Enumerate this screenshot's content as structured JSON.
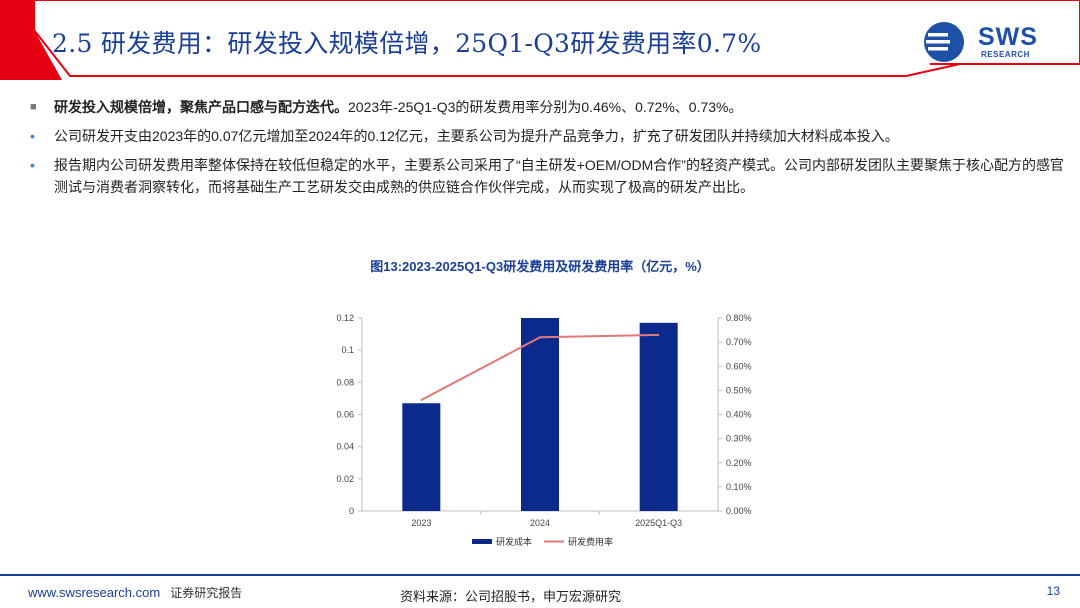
{
  "slide": {
    "title": "2.5 研发费用：研发投入规模倍增，25Q1-Q3研发费用率0.7%",
    "logo_text": "SWS",
    "logo_sub": "RESEARCH"
  },
  "bullets": [
    {
      "marker": "■",
      "bold": "研发投入规模倍增，聚焦产品口感与配方迭代。",
      "text": "2023年-25Q1-Q3的研发费用率分别为0.46%、0.72%、0.73%。"
    },
    {
      "marker": "•",
      "bold": "",
      "text": "公司研发开支由2023年的0.07亿元增加至2024年的0.12亿元，主要系公司为提升产品竞争力，扩充了研发团队并持续加大材料成本投入。"
    },
    {
      "marker": "•",
      "bold": "",
      "text": "报告期内公司研发费用率整体保持在较低但稳定的水平，主要系公司采用了“自主研发+OEM/ODM合作”的轻资产模式。公司内部研发团队主要聚焦于核心配方的感官测试与消费者洞察转化，而将基础生产工艺研发交由成熟的供应链合作伙伴完成，从而实现了极高的研发产出比。"
    }
  ],
  "chart_data": {
    "type": "bar",
    "title": "图13:2023-2025Q1-Q3研发费用及研发费用率（亿元，%）",
    "categories": [
      "2023",
      "2024",
      "2025Q1-Q3"
    ],
    "series": [
      {
        "name": "研发成本",
        "type": "bar",
        "axis": "left",
        "values": [
          0.067,
          0.12,
          0.117
        ],
        "color": "#0c2a8c"
      },
      {
        "name": "研发费用率",
        "type": "line",
        "axis": "right",
        "values": [
          0.46,
          0.72,
          0.73
        ],
        "color": "#e07a78"
      }
    ],
    "y_left": {
      "min": 0,
      "max": 0.12,
      "ticks": [
        "0",
        "0.02",
        "0.04",
        "0.06",
        "0.08",
        "0.1",
        "0.12"
      ]
    },
    "y_right": {
      "min": 0,
      "max": 0.8,
      "ticks": [
        "0.00%",
        "0.10%",
        "0.20%",
        "0.30%",
        "0.40%",
        "0.50%",
        "0.60%",
        "0.70%",
        "0.80%"
      ]
    },
    "legend_position": "bottom",
    "grid": false
  },
  "footer": {
    "url": "www.swsresearch.com",
    "report_label": "证券研究报告",
    "source": "资料来源：公司招股书，申万宏源研究",
    "page": "13"
  },
  "colors": {
    "accent_red": "#e60012",
    "brand_blue": "#1a3f99"
  }
}
